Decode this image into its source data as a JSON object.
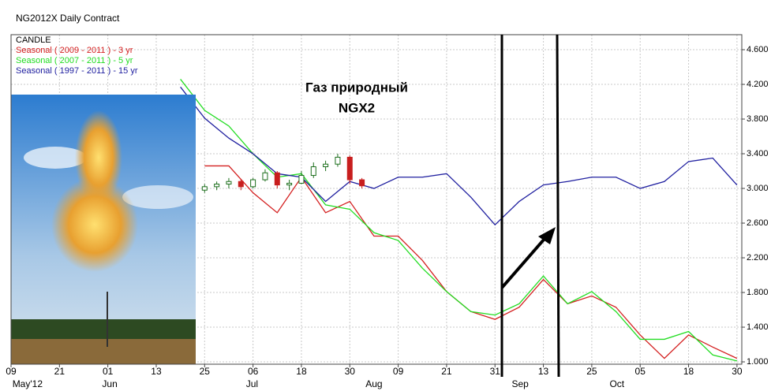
{
  "chart_data": {
    "type": "line",
    "title": "NG2012X Daily Contract",
    "annotation": [
      "Газ природный",
      "NGX2"
    ],
    "xlim": [
      0,
      15.1
    ],
    "xticks": [
      {
        "value": 0,
        "label": "09"
      },
      {
        "value": 1,
        "label": "21"
      },
      {
        "value": 2,
        "label": "01"
      },
      {
        "value": 3,
        "label": "13"
      },
      {
        "value": 4,
        "label": "25"
      },
      {
        "value": 5,
        "label": "06"
      },
      {
        "value": 6,
        "label": "18"
      },
      {
        "value": 7,
        "label": "30"
      },
      {
        "value": 8,
        "label": "09"
      },
      {
        "value": 9,
        "label": "21"
      },
      {
        "value": 10,
        "label": "31"
      },
      {
        "value": 11,
        "label": "13"
      },
      {
        "value": 12,
        "label": "25"
      },
      {
        "value": 13,
        "label": "05"
      },
      {
        "value": 14,
        "label": "18"
      },
      {
        "value": 15,
        "label": "30"
      }
    ],
    "xmonths": [
      {
        "value": 0.34,
        "label": "May'12"
      },
      {
        "value": 2.04,
        "label": "Jun"
      },
      {
        "value": 4.98,
        "label": "Jul"
      },
      {
        "value": 7.5,
        "label": "Aug"
      },
      {
        "value": 10.52,
        "label": "Sep"
      },
      {
        "value": 12.52,
        "label": "Oct"
      }
    ],
    "ylim": [
      0.973,
      4.773
    ],
    "yticks": [
      {
        "value": 1,
        "label": "1.000"
      },
      {
        "value": 1.4,
        "label": "1.400"
      },
      {
        "value": 1.8,
        "label": "1.800"
      },
      {
        "value": 2.2,
        "label": "2.200"
      },
      {
        "value": 2.6,
        "label": "2.600"
      },
      {
        "value": 3,
        "label": "3.000"
      },
      {
        "value": 3.4,
        "label": "3.400"
      },
      {
        "value": 3.8,
        "label": "3.800"
      },
      {
        "value": 4.2,
        "label": "4.200"
      },
      {
        "value": 4.6,
        "label": "4.600"
      }
    ],
    "grid": true,
    "candles": {
      "name": "CANDLE",
      "up_color": "#1c6e1c",
      "down_color": "#c81e1e",
      "x": [
        4.0,
        4.25,
        4.5,
        4.75,
        5.0,
        5.25,
        5.5,
        5.75,
        6.0,
        6.25,
        6.5,
        6.75,
        7.0,
        7.25
      ],
      "open": [
        2.98,
        3.02,
        3.05,
        3.08,
        3.02,
        3.1,
        3.18,
        3.04,
        3.06,
        3.15,
        3.25,
        3.28,
        3.36,
        3.1
      ],
      "high": [
        3.05,
        3.08,
        3.12,
        3.1,
        3.12,
        3.22,
        3.2,
        3.1,
        3.2,
        3.3,
        3.32,
        3.4,
        3.38,
        3.12
      ],
      "low": [
        2.95,
        2.98,
        3.0,
        2.98,
        3.0,
        3.08,
        3.0,
        2.98,
        3.05,
        3.12,
        3.2,
        3.25,
        3.05,
        3.0
      ],
      "close": [
        3.02,
        3.05,
        3.08,
        3.02,
        3.1,
        3.18,
        3.04,
        3.06,
        3.15,
        3.25,
        3.28,
        3.36,
        3.1,
        3.03
      ]
    },
    "x": [
      3.5,
      4,
      4.5,
      5,
      5.5,
      6,
      6.5,
      7,
      7.5,
      8,
      8.5,
      9,
      9.5,
      10,
      10.5,
      11,
      11.5,
      12,
      12.5,
      13,
      13.5,
      14,
      14.5,
      15
    ],
    "series": [
      {
        "name": "Seasonal ( 2009 - 2011 ) - 3 yr",
        "color": "#d42020",
        "values": [
          null,
          3.26,
          3.26,
          2.95,
          2.72,
          3.13,
          2.72,
          2.85,
          2.45,
          2.45,
          2.17,
          1.81,
          1.58,
          1.49,
          1.63,
          1.95,
          1.67,
          1.76,
          1.63,
          1.31,
          1.04,
          1.31,
          1.17,
          1.04
        ]
      },
      {
        "name": "Seasonal ( 2007 - 2011 ) - 5 yr",
        "color": "#22dd22",
        "values": [
          4.26,
          3.9,
          3.72,
          3.4,
          3.13,
          3.17,
          2.81,
          2.76,
          2.49,
          2.4,
          2.08,
          1.81,
          1.58,
          1.54,
          1.67,
          1.99,
          1.67,
          1.81,
          1.58,
          1.26,
          1.26,
          1.35,
          1.08,
          1.01
        ]
      },
      {
        "name": "Seasonal ( 1997 - 2011 ) - 15 yr",
        "color": "#2020a0",
        "values": [
          4.17,
          3.81,
          3.58,
          3.4,
          3.17,
          3.13,
          2.85,
          3.08,
          3.0,
          3.13,
          3.13,
          3.17,
          2.9,
          2.58,
          2.85,
          3.04,
          3.08,
          3.13,
          3.13,
          3.0,
          3.08,
          3.31,
          3.35,
          3.04
        ]
      }
    ]
  }
}
